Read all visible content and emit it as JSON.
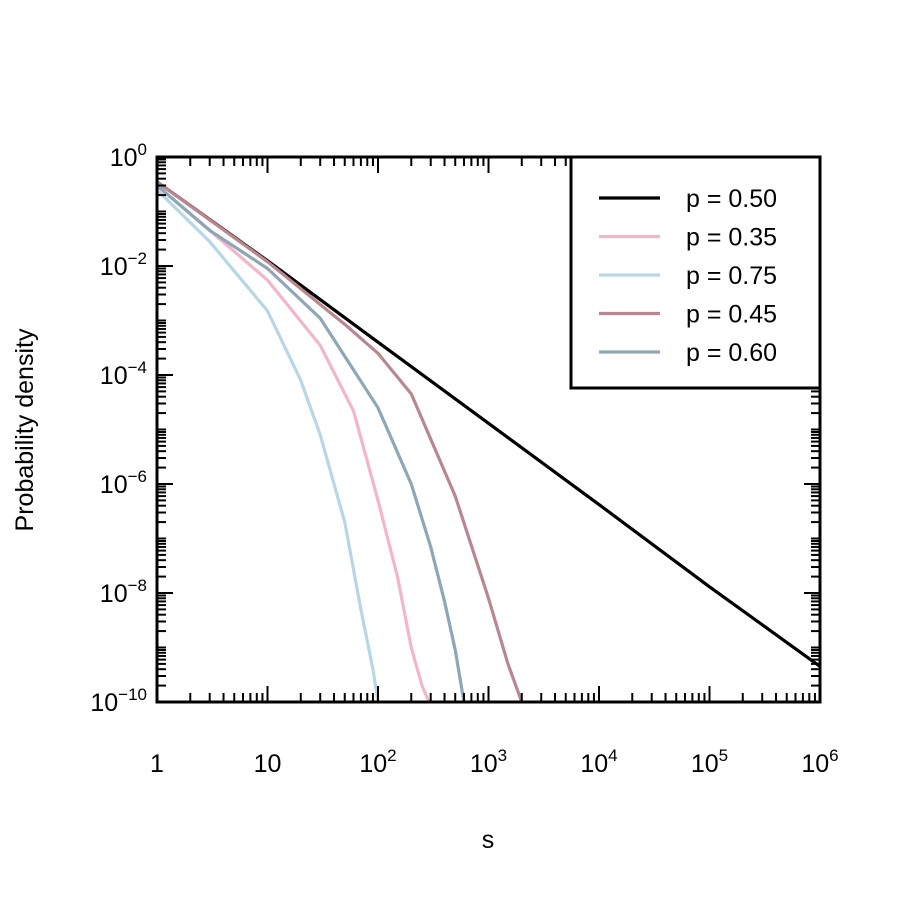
{
  "chart_data": {
    "type": "line",
    "xlabel": "s",
    "ylabel": "Probability density",
    "x_scale": "log",
    "y_scale": "log",
    "xlim": [
      1,
      1000000
    ],
    "ylim": [
      1e-10,
      1
    ],
    "x_ticks": [
      {
        "base": "1",
        "exp": ""
      },
      {
        "base": "10",
        "exp": ""
      },
      {
        "base": "10",
        "exp": "2"
      },
      {
        "base": "10",
        "exp": "3"
      },
      {
        "base": "10",
        "exp": "4"
      },
      {
        "base": "10",
        "exp": "5"
      },
      {
        "base": "10",
        "exp": "6"
      }
    ],
    "y_ticks": [
      {
        "base": "10",
        "exp": "0"
      },
      {
        "base": "10",
        "exp": "−2"
      },
      {
        "base": "10",
        "exp": "−4"
      },
      {
        "base": "10",
        "exp": "−6"
      },
      {
        "base": "10",
        "exp": "−8"
      },
      {
        "base": "10",
        "exp": "−10"
      }
    ],
    "legend_position": "top-right",
    "grid": false,
    "series": [
      {
        "name": "p = 0.50",
        "color": "#000000",
        "x": [
          1,
          10,
          100,
          1000,
          10000,
          100000,
          1000000
        ],
        "y": [
          0.35,
          0.0125,
          0.0004,
          1.3e-05,
          4.2e-07,
          1.3e-08,
          4.5e-10
        ]
      },
      {
        "name": "p = 0.35",
        "color": "#f2b6c6",
        "x": [
          1,
          3,
          10,
          30,
          60,
          100,
          150,
          200,
          250,
          290
        ],
        "y": [
          0.3,
          0.045,
          0.0055,
          0.00035,
          2.2e-05,
          5e-07,
          2e-08,
          1e-09,
          2e-10,
          1e-10
        ]
      },
      {
        "name": "p = 0.75",
        "color": "#b7d6e6",
        "x": [
          1,
          3,
          10,
          20,
          30,
          50,
          70,
          90,
          100
        ],
        "y": [
          0.25,
          0.028,
          0.0015,
          8e-05,
          8e-06,
          2e-07,
          5e-09,
          4e-10,
          1e-10
        ]
      },
      {
        "name": "p = 0.45",
        "color": "#b98790",
        "x": [
          1,
          10,
          50,
          100,
          200,
          500,
          1000,
          1500,
          2000
        ],
        "y": [
          0.35,
          0.012,
          0.00085,
          0.00025,
          4.5e-05,
          6e-07,
          8e-09,
          5e-10,
          1e-10
        ]
      },
      {
        "name": "p = 0.60",
        "color": "#8ea6b5",
        "x": [
          1,
          3,
          10,
          30,
          100,
          200,
          300,
          400,
          500,
          600
        ],
        "y": [
          0.3,
          0.045,
          0.009,
          0.0011,
          2.5e-05,
          1e-06,
          7e-08,
          7e-09,
          9e-10,
          1e-10
        ]
      }
    ]
  }
}
